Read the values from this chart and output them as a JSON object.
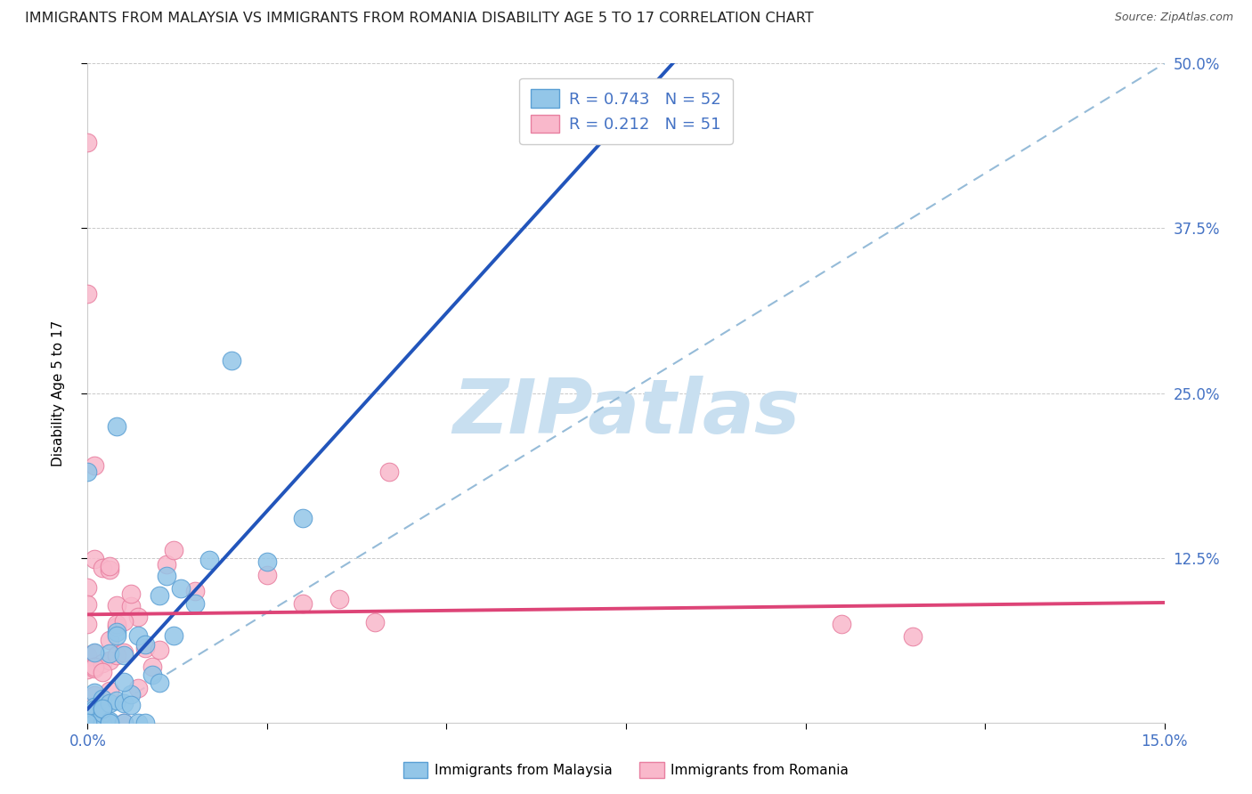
{
  "title": "IMMIGRANTS FROM MALAYSIA VS IMMIGRANTS FROM ROMANIA DISABILITY AGE 5 TO 17 CORRELATION CHART",
  "source": "Source: ZipAtlas.com",
  "ylabel": "Disability Age 5 to 17",
  "xlim": [
    0.0,
    0.15
  ],
  "ylim": [
    0.0,
    0.5
  ],
  "ytick_positions": [
    0.125,
    0.25,
    0.375,
    0.5
  ],
  "ytick_labels": [
    "12.5%",
    "25.0%",
    "37.5%",
    "50.0%"
  ],
  "malaysia_R": 0.743,
  "malaysia_N": 52,
  "romania_R": 0.212,
  "romania_N": 51,
  "malaysia_color": "#93c6e8",
  "malaysia_edge": "#5a9fd4",
  "romania_color": "#f9b8cb",
  "romania_edge": "#e87fa0",
  "malaysia_line_color": "#2255bb",
  "romania_line_color": "#dd4477",
  "diag_color": "#8ab4d4",
  "watermark": "ZIPatlas",
  "watermark_color": "#c8dff0",
  "background_color": "#ffffff",
  "grid_color": "#bbbbbb",
  "title_fontsize": 11.5,
  "tick_label_color": "#4472c4",
  "legend_R_color": "#4472c4"
}
